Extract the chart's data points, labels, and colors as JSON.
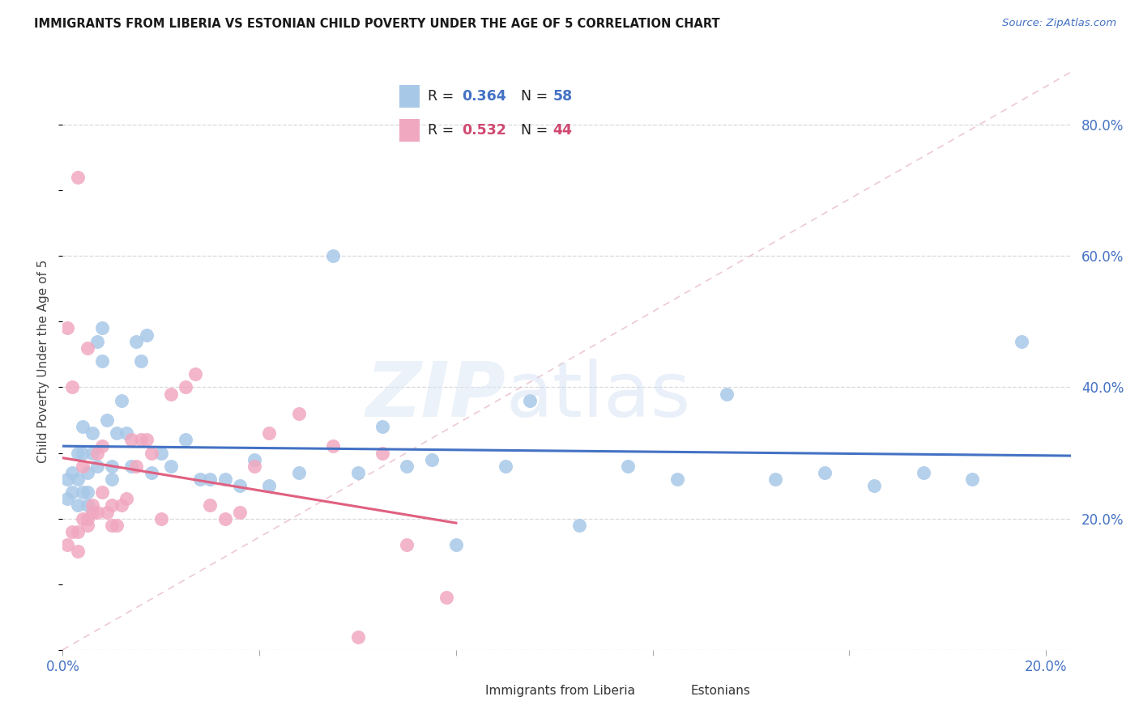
{
  "title": "IMMIGRANTS FROM LIBERIA VS ESTONIAN CHILD POVERTY UNDER THE AGE OF 5 CORRELATION CHART",
  "source": "Source: ZipAtlas.com",
  "ylabel": "Child Poverty Under the Age of 5",
  "xlim": [
    0.0,
    0.205
  ],
  "ylim": [
    0.0,
    0.88
  ],
  "color_blue": "#a8c8e8",
  "color_pink": "#f0a8c0",
  "color_blue_text": "#4472c4",
  "color_pink_text": "#d04870",
  "color_line_blue": "#4472c4",
  "color_line_pink": "#e06080",
  "color_diagonal": "#e8c0c8",
  "legend_label1": "Immigrants from Liberia",
  "legend_label2": "Estonians",
  "R1": 0.364,
  "N1": 58,
  "R2": 0.532,
  "N2": 44,
  "blue_x": [
    0.001,
    0.001,
    0.002,
    0.002,
    0.003,
    0.003,
    0.003,
    0.004,
    0.004,
    0.004,
    0.005,
    0.005,
    0.005,
    0.006,
    0.006,
    0.007,
    0.007,
    0.008,
    0.008,
    0.009,
    0.01,
    0.01,
    0.011,
    0.012,
    0.013,
    0.014,
    0.015,
    0.016,
    0.017,
    0.018,
    0.02,
    0.022,
    0.025,
    0.028,
    0.03,
    0.033,
    0.036,
    0.039,
    0.042,
    0.048,
    0.055,
    0.06,
    0.065,
    0.07,
    0.075,
    0.08,
    0.09,
    0.095,
    0.105,
    0.115,
    0.125,
    0.135,
    0.145,
    0.155,
    0.165,
    0.175,
    0.185,
    0.195
  ],
  "blue_y": [
    0.23,
    0.26,
    0.24,
    0.27,
    0.22,
    0.26,
    0.3,
    0.24,
    0.3,
    0.34,
    0.22,
    0.27,
    0.24,
    0.3,
    0.33,
    0.28,
    0.47,
    0.44,
    0.49,
    0.35,
    0.26,
    0.28,
    0.33,
    0.38,
    0.33,
    0.28,
    0.47,
    0.44,
    0.48,
    0.27,
    0.3,
    0.28,
    0.32,
    0.26,
    0.26,
    0.26,
    0.25,
    0.29,
    0.25,
    0.27,
    0.6,
    0.27,
    0.34,
    0.28,
    0.29,
    0.16,
    0.28,
    0.38,
    0.19,
    0.28,
    0.26,
    0.39,
    0.26,
    0.27,
    0.25,
    0.27,
    0.26,
    0.47
  ],
  "pink_x": [
    0.001,
    0.001,
    0.002,
    0.002,
    0.003,
    0.003,
    0.003,
    0.004,
    0.004,
    0.005,
    0.005,
    0.005,
    0.006,
    0.006,
    0.007,
    0.007,
    0.008,
    0.008,
    0.009,
    0.01,
    0.01,
    0.011,
    0.012,
    0.013,
    0.014,
    0.015,
    0.016,
    0.017,
    0.018,
    0.02,
    0.022,
    0.025,
    0.027,
    0.03,
    0.033,
    0.036,
    0.039,
    0.042,
    0.048,
    0.055,
    0.06,
    0.065,
    0.07,
    0.078
  ],
  "pink_y": [
    0.16,
    0.49,
    0.18,
    0.4,
    0.15,
    0.72,
    0.18,
    0.2,
    0.28,
    0.2,
    0.19,
    0.46,
    0.22,
    0.21,
    0.21,
    0.3,
    0.31,
    0.24,
    0.21,
    0.22,
    0.19,
    0.19,
    0.22,
    0.23,
    0.32,
    0.28,
    0.32,
    0.32,
    0.3,
    0.2,
    0.39,
    0.4,
    0.42,
    0.22,
    0.2,
    0.21,
    0.28,
    0.33,
    0.36,
    0.31,
    0.02,
    0.3,
    0.16,
    0.08
  ],
  "background_color": "#ffffff",
  "grid_color": "#d8d8e0",
  "watermark_zip": "ZIP",
  "watermark_atlas": "atlas"
}
